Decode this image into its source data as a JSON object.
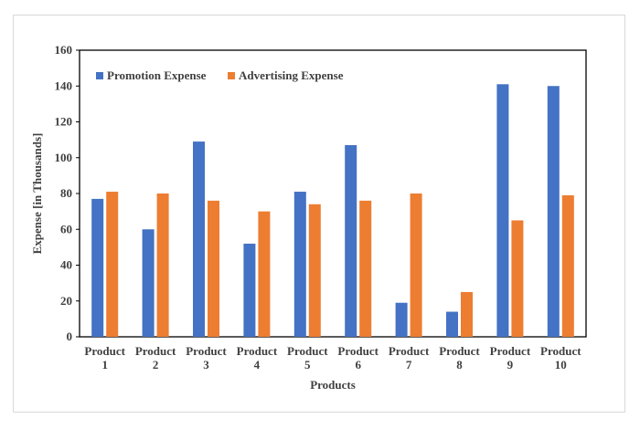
{
  "chart_data": {
    "type": "bar",
    "title": "",
    "xlabel": "Products",
    "ylabel": "Expense [in Thousands]",
    "ylim": [
      0,
      160
    ],
    "yticks": [
      0,
      20,
      40,
      60,
      80,
      100,
      120,
      140,
      160
    ],
    "grid": false,
    "legend_position": "top-left",
    "categories": [
      [
        "Product",
        "1"
      ],
      [
        "Product",
        "2"
      ],
      [
        "Product",
        "3"
      ],
      [
        "Product",
        "4"
      ],
      [
        "Product",
        "5"
      ],
      [
        "Product",
        "6"
      ],
      [
        "Product",
        "7"
      ],
      [
        "Product",
        "8"
      ],
      [
        "Product",
        "9"
      ],
      [
        "Product",
        "10"
      ]
    ],
    "series": [
      {
        "name": "Promotion Expense",
        "color": "#4472C4",
        "values": [
          77,
          60,
          109,
          52,
          81,
          107,
          19,
          14,
          141,
          140
        ]
      },
      {
        "name": "Advertising Expense",
        "color": "#ED7D31",
        "values": [
          81,
          80,
          76,
          70,
          74,
          76,
          80,
          25,
          65,
          79
        ]
      }
    ]
  }
}
